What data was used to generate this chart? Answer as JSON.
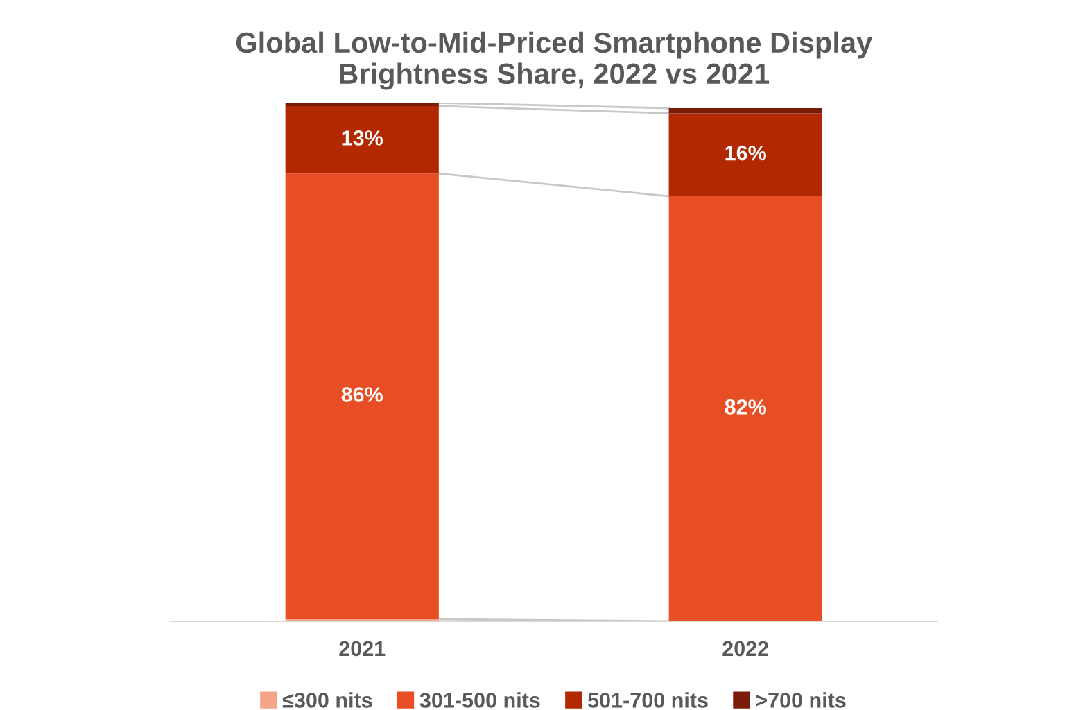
{
  "chart_data": {
    "type": "bar",
    "stacked": true,
    "title": "Global Low-to-Mid-Priced Smartphone Display\nBrightness Share, 2022 vs 2021",
    "categories": [
      "2021",
      "2022"
    ],
    "series": [
      {
        "name": "≤300 nits",
        "color": "#f4a58a",
        "values": [
          0.4,
          null
        ]
      },
      {
        "name": "301-500 nits",
        "color": "#e84e24",
        "values": [
          86,
          82
        ],
        "value_labels": [
          "86%",
          "82%"
        ]
      },
      {
        "name": "501-700 nits",
        "color": "#b22800",
        "values": [
          13,
          16
        ],
        "value_labels": [
          "13%",
          "16%"
        ]
      },
      {
        "name": ">700 nits",
        "color": "#7a1c0a",
        "values": [
          0.6,
          1.0
        ]
      }
    ],
    "ylim": [
      0,
      100
    ],
    "tick_labels": "x",
    "legend": "bottom",
    "grid": false
  }
}
